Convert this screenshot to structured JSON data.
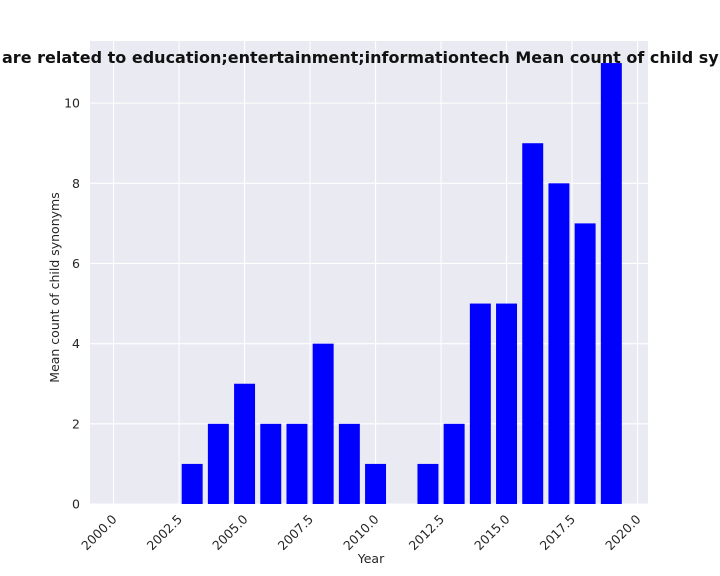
{
  "chart_data": {
    "type": "bar",
    "title": "are related to education;entertainment;informationtech Mean count of child synonyms in priva",
    "xlabel": "Year",
    "ylabel": "Mean count of child synonyms",
    "x": [
      2003,
      2004,
      2005,
      2006,
      2007,
      2008,
      2009,
      2010,
      2012,
      2013,
      2014,
      2015,
      2016,
      2017,
      2018,
      2019
    ],
    "values": [
      1,
      2,
      3,
      2,
      2,
      4,
      2,
      1,
      1,
      2,
      5,
      5,
      9,
      8,
      7,
      11
    ],
    "xlim": [
      1999.1,
      2020.4
    ],
    "ylim": [
      0,
      11.55
    ],
    "xticks": [
      2000,
      2002.5,
      2005,
      2007.5,
      2010,
      2012.5,
      2015,
      2017.5,
      2020
    ],
    "xtick_labels": [
      "2000.0",
      "2002.5",
      "2005.0",
      "2007.5",
      "2010.0",
      "2012.5",
      "2015.0",
      "2017.5",
      "2020.0"
    ],
    "yticks": [
      0,
      2,
      4,
      6,
      8,
      10
    ],
    "ytick_labels": [
      "0",
      "2",
      "4",
      "6",
      "8",
      "10"
    ],
    "grid": true,
    "colors": {
      "bar": "#0000ff",
      "plot_background": "#eaeaf2",
      "grid": "#ffffff",
      "text": "#262626"
    }
  }
}
